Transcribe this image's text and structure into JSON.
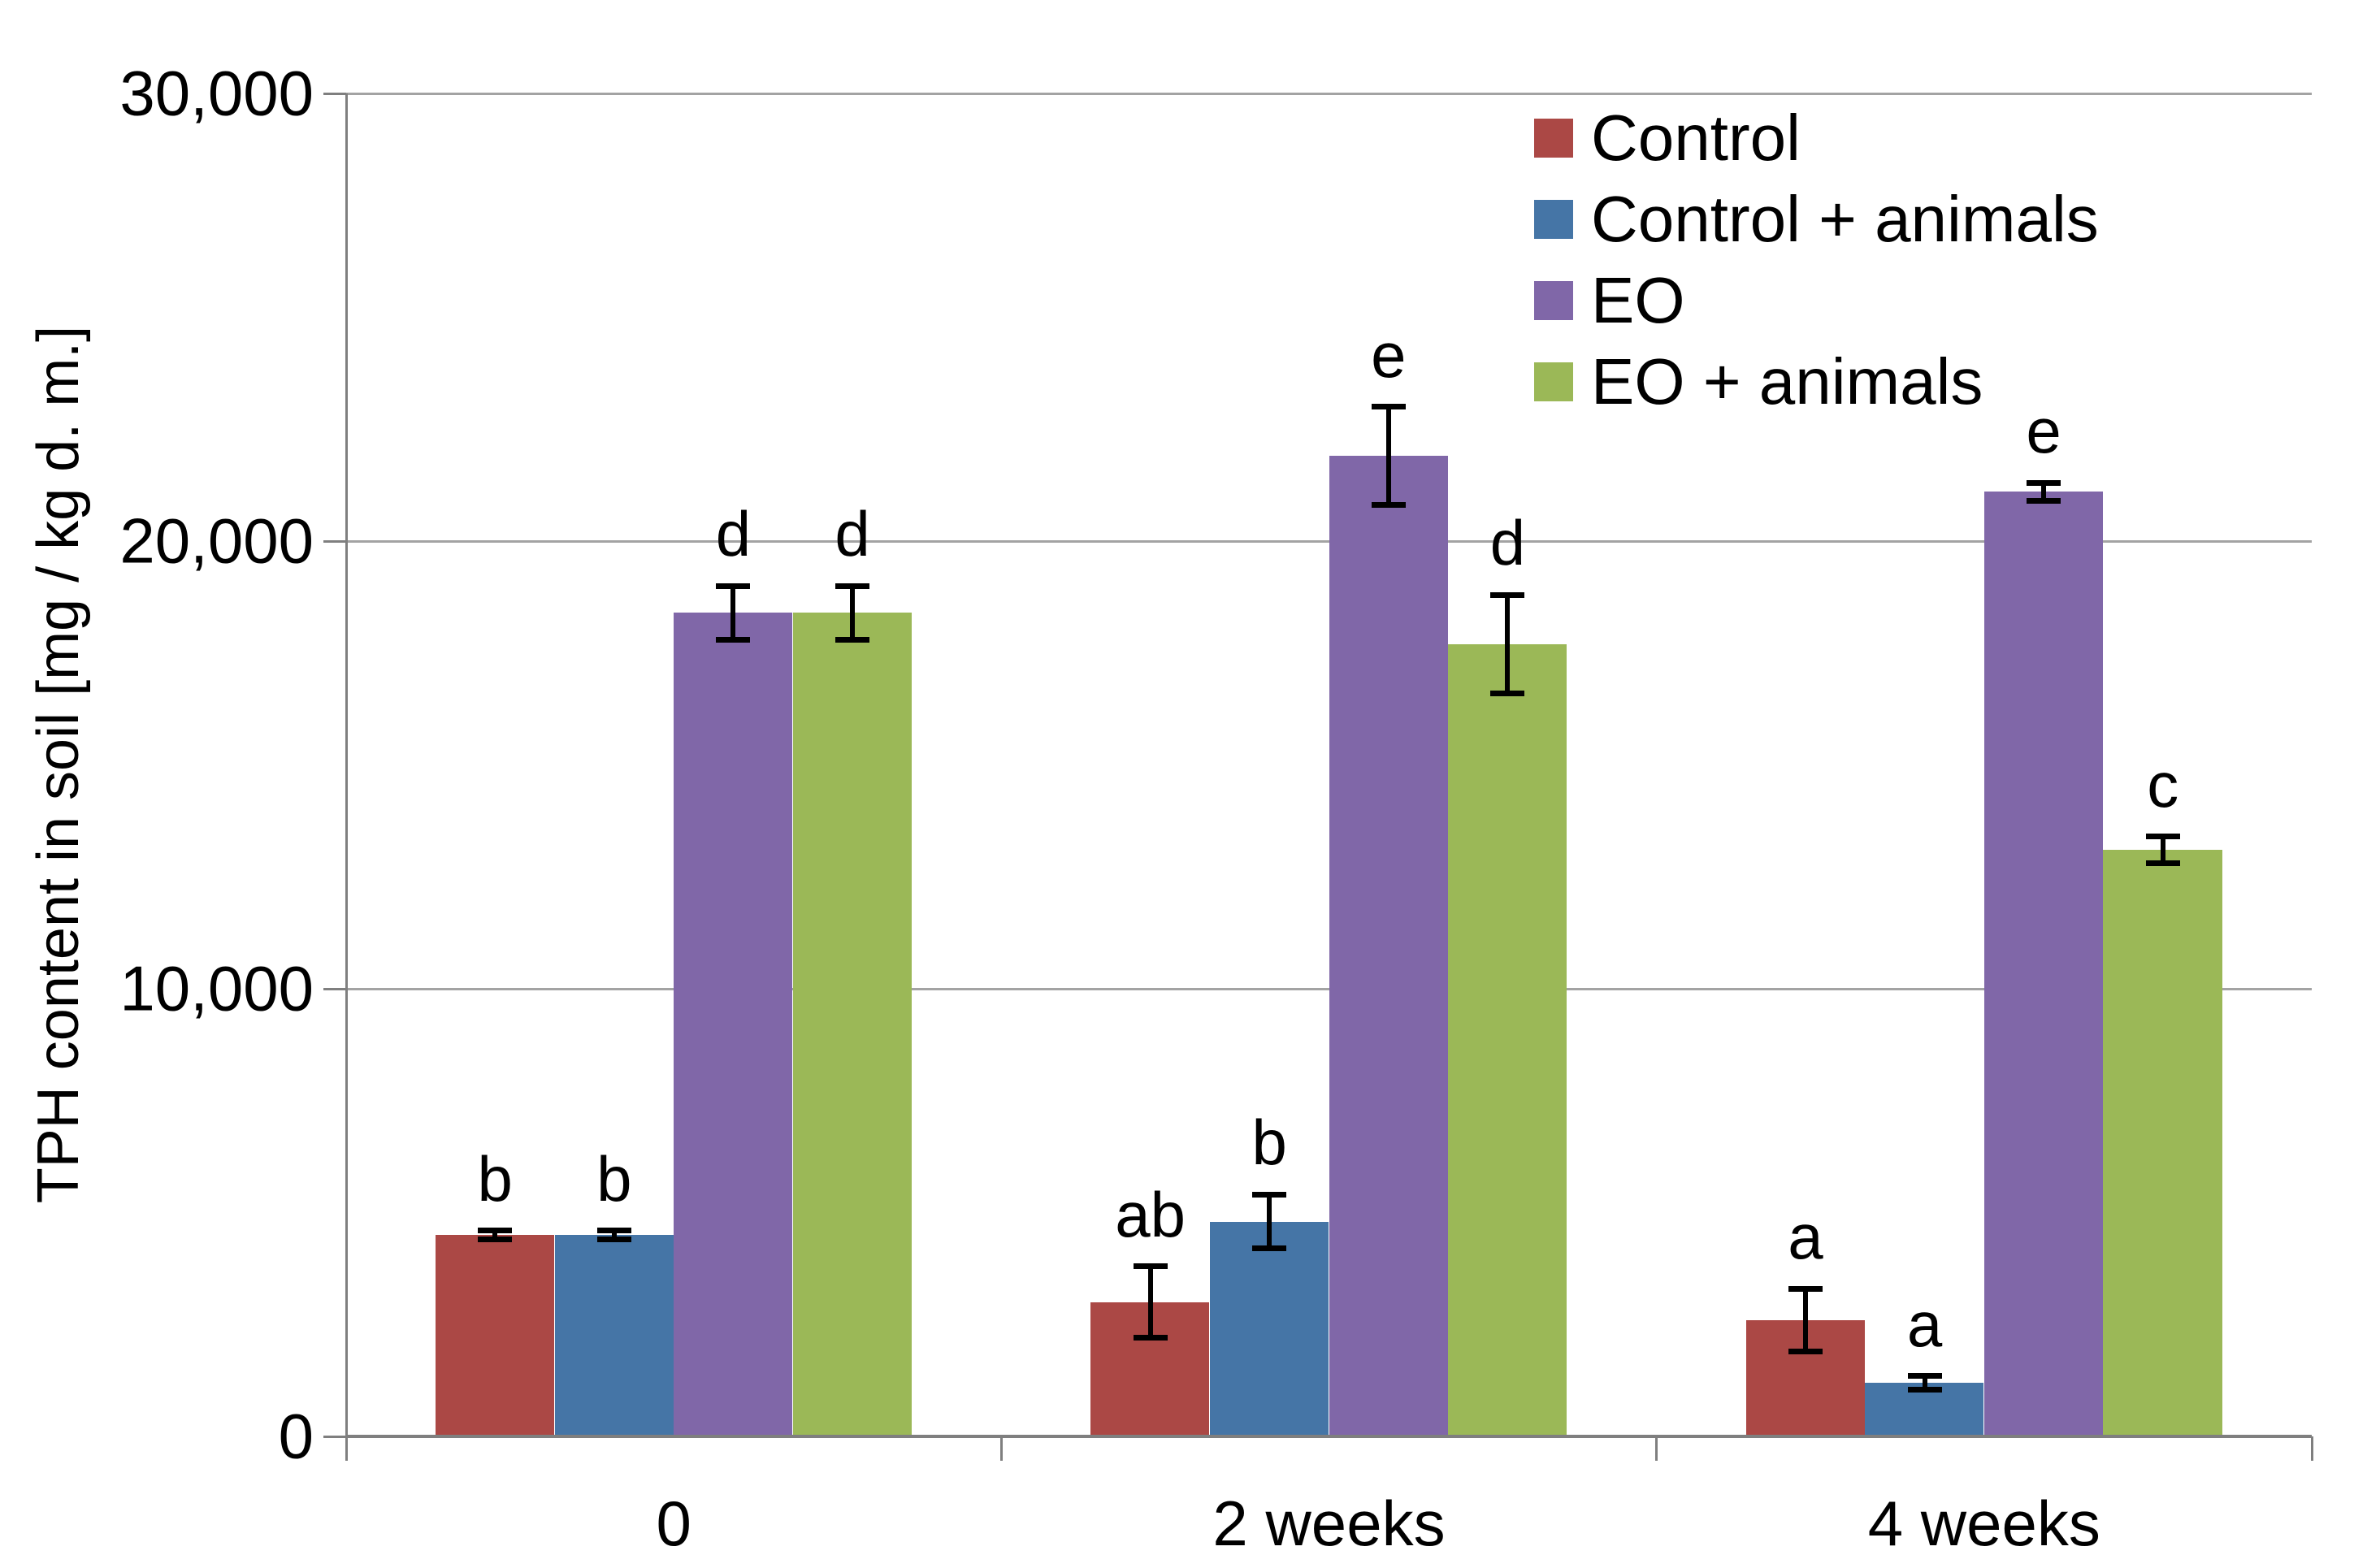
{
  "figure": {
    "background": "#FFFFFF"
  },
  "chart_data": {
    "type": "bar",
    "title": "",
    "xlabel": "",
    "ylabel": "TPH content in soil [mg / kg d. m.]",
    "ylim": [
      0,
      30000
    ],
    "y_tick_interval": 10000,
    "y_ticks": [
      {
        "value": 0,
        "label": "0"
      },
      {
        "value": 10000,
        "label": "10,000"
      },
      {
        "value": 20000,
        "label": "20,000"
      },
      {
        "value": 30000,
        "label": "30,000"
      }
    ],
    "categories": [
      "0",
      "2 weeks",
      "4 weeks"
    ],
    "grid": "horizontal",
    "legend_position": "top-right-inside",
    "series": [
      {
        "name": "Control",
        "color": "#AB4845",
        "values": [
          4500,
          3000,
          2600
        ],
        "errors": [
          100,
          800,
          700
        ],
        "letters": [
          "b",
          "ab",
          "a"
        ]
      },
      {
        "name": "Control + animals",
        "color": "#4575A6",
        "values": [
          4500,
          4800,
          1200
        ],
        "errors": [
          100,
          600,
          150
        ],
        "letters": [
          "b",
          "b",
          "a"
        ]
      },
      {
        "name": "EO",
        "color": "#8067A8",
        "values": [
          18400,
          21900,
          21100
        ],
        "errors": [
          600,
          1100,
          200
        ],
        "letters": [
          "d",
          "e",
          "e"
        ]
      },
      {
        "name": "EO + animals",
        "color": "#9BB857",
        "values": [
          18400,
          17700,
          13100
        ],
        "errors": [
          600,
          1100,
          300
        ],
        "letters": [
          "d",
          "d",
          "c"
        ]
      }
    ],
    "error_bar_color": "#000000",
    "axis_color": "#7F7F7F",
    "gridline_color": "#A3A3A3",
    "text_color": "#000000"
  }
}
